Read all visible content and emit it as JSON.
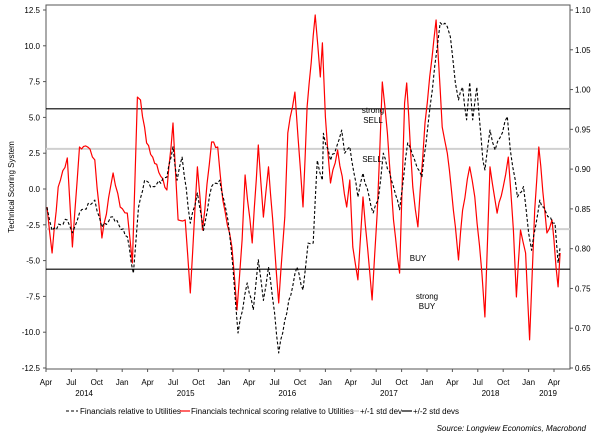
{
  "chart_data": {
    "type": "line",
    "ylabel": "Technical Scoring System",
    "ylim_left": [
      -12.5,
      12.5
    ],
    "ylim_right": [
      0.65,
      1.1
    ],
    "left_ticks": [
      "12.5",
      "10.0",
      "7.5",
      "5.0",
      "2.5",
      "0.0",
      "-2.5",
      "-5.0",
      "-7.5",
      "-10.0",
      "-12.5"
    ],
    "right_ticks": [
      "1.10",
      "1.05",
      "1.00",
      "0.95",
      "0.90",
      "0.85",
      "0.80",
      "0.75",
      "0.70",
      "0.65"
    ],
    "x_ticks": [
      "Apr",
      "Jul",
      "Oct",
      "Jan",
      "Apr",
      "Jul",
      "Oct",
      "Jan",
      "Apr",
      "Jul",
      "Oct",
      "Jan",
      "Apr",
      "Jul",
      "Oct",
      "Jan",
      "Apr",
      "Jul",
      "Oct",
      "Jan",
      "Apr"
    ],
    "x_years": [
      "2014",
      "2015",
      "2016",
      "2017",
      "2018",
      "2019"
    ],
    "xlim": [
      2014.25,
      2019.33
    ],
    "grid": false,
    "legend_position": "bottom",
    "legend": [
      "Financials relative to Utilities",
      "Financials technical scoring relative to Utilities",
      "+/-1 std dev",
      "+/-2 std devs"
    ],
    "source": "Source: Longview Economics, Macrobond",
    "annotations": {
      "strong": "strong",
      "sell": "SELL",
      "sell2": "SELL",
      "buy": "BUY",
      "strong2": "strong",
      "buy2": "BUY"
    },
    "std1": 2.8,
    "std2": 5.6,
    "series": [
      {
        "name": "Financials technical scoring relative to Utilities",
        "axis": "left",
        "color": "#ff0000",
        "x": [
          2014.26,
          2014.31,
          2014.37,
          2014.46,
          2014.51,
          2014.58,
          2014.66,
          2014.73,
          2014.8,
          2014.91,
          2014.98,
          2015.05,
          2015.1,
          2015.15,
          2015.18,
          2015.24,
          2015.3,
          2015.44,
          2015.5,
          2015.55,
          2015.62,
          2015.67,
          2015.74,
          2015.79,
          2015.88,
          2015.94,
          2015.99,
          2016.08,
          2016.13,
          2016.18,
          2016.21,
          2016.28,
          2016.34,
          2016.39,
          2016.44,
          2016.5,
          2016.54,
          2016.6,
          2016.63,
          2016.7,
          2016.73,
          2016.78,
          2016.82,
          2016.9,
          2016.95,
          2016.97,
          2017.0,
          2017.05,
          2017.12,
          2017.21,
          2017.24,
          2017.27,
          2017.32,
          2017.37,
          2017.46,
          2017.51,
          2017.56,
          2017.61,
          2017.67,
          2017.73,
          2017.78,
          2017.8,
          2017.86,
          2017.91,
          2017.98,
          2018.05,
          2018.09,
          2018.15,
          2018.2,
          2018.28,
          2018.31,
          2018.35,
          2018.42,
          2018.47,
          2018.54,
          2018.57,
          2018.62,
          2018.69,
          2018.75,
          2018.8,
          2018.85,
          2018.88,
          2018.92,
          2018.97,
          2019.01,
          2019.06,
          2019.1,
          2019.18,
          2019.23,
          2019.29,
          2019.31
        ],
        "values": [
          -1.26,
          -4.47,
          0.14,
          2.17,
          -4.05,
          2.93,
          2.93,
          2.03,
          -3.42,
          1.12,
          -1.26,
          -1.68,
          -5.17,
          6.42,
          6.22,
          3.21,
          2.23,
          -0.07,
          4.61,
          -2.16,
          -2.16,
          -7.26,
          1.54,
          -2.86,
          3.28,
          2.93,
          -0.77,
          -4.05,
          -8.45,
          -3.56,
          0.98,
          -3.77,
          3.07,
          -1.96,
          1.54,
          -4.05,
          -7.96,
          -1.96,
          3.91,
          6.77,
          3.63,
          -1.26,
          5.73,
          12.15,
          7.82,
          10.2,
          5.03,
          0.42,
          2.72,
          -1.26,
          0.63,
          -4.05,
          -6.35,
          -0.56,
          -7.75,
          -1.68,
          7.47,
          3.91,
          -2.16,
          -5.87,
          6.01,
          7.4,
          0.14,
          -2.65,
          4.61,
          9.22,
          11.8,
          4.33,
          2.51,
          -2.65,
          -4.96,
          -1.47,
          1.54,
          -0.56,
          -5.87,
          -8.94,
          1.54,
          -1.68,
          0.14,
          2.23,
          -2.86,
          -7.54,
          -2.86,
          -4.47,
          -10.54,
          -1.47,
          2.93,
          -3.07,
          -2.16,
          -6.84,
          -4.47
        ]
      },
      {
        "name": "Financials relative to Utilities",
        "axis": "right",
        "color": "#000000",
        "x": [
          2014.26,
          2014.31,
          2014.46,
          2014.51,
          2014.58,
          2014.73,
          2014.8,
          2014.91,
          2015.05,
          2015.11,
          2015.16,
          2015.22,
          2015.3,
          2015.44,
          2015.5,
          2015.54,
          2015.59,
          2015.67,
          2015.74,
          2015.8,
          2015.88,
          2015.96,
          2016.04,
          2016.09,
          2016.14,
          2016.23,
          2016.29,
          2016.34,
          2016.39,
          2016.44,
          2016.5,
          2016.54,
          2016.6,
          2016.72,
          2016.78,
          2016.83,
          2016.88,
          2016.92,
          2016.97,
          2016.98,
          2017.05,
          2017.11,
          2017.16,
          2017.19,
          2017.24,
          2017.32,
          2017.37,
          2017.47,
          2017.52,
          2017.57,
          2017.67,
          2017.73,
          2017.81,
          2017.88,
          2017.95,
          2018.03,
          2018.1,
          2018.13,
          2018.2,
          2018.23,
          2018.28,
          2018.31,
          2018.35,
          2018.39,
          2018.42,
          2018.45,
          2018.49,
          2018.55,
          2018.57,
          2018.62,
          2018.67,
          2018.72,
          2018.79,
          2018.82,
          2018.89,
          2018.95,
          2019.0,
          2019.03,
          2019.11,
          2019.19,
          2019.26,
          2019.29,
          2019.31
        ],
        "values": [
          0.852,
          0.823,
          0.836,
          0.82,
          0.845,
          0.861,
          0.827,
          0.84,
          0.815,
          0.769,
          0.852,
          0.886,
          0.878,
          0.89,
          0.928,
          0.886,
          0.915,
          0.832,
          0.87,
          0.823,
          0.878,
          0.886,
          0.836,
          0.777,
          0.694,
          0.757,
          0.723,
          0.786,
          0.735,
          0.777,
          0.719,
          0.669,
          0.71,
          0.777,
          0.748,
          0.807,
          0.807,
          0.911,
          0.886,
          0.945,
          0.911,
          0.928,
          0.949,
          0.92,
          0.928,
          0.865,
          0.895,
          0.845,
          0.861,
          0.92,
          0.878,
          0.849,
          0.933,
          0.911,
          0.89,
          0.978,
          1.053,
          1.084,
          1.079,
          1.066,
          1.008,
          0.987,
          1.003,
          0.962,
          1.009,
          0.962,
          1.003,
          0.911,
          0.899,
          0.949,
          0.924,
          0.94,
          0.966,
          0.924,
          0.865,
          0.878,
          0.82,
          0.798,
          0.861,
          0.84,
          0.832,
          0.782,
          0.802
        ]
      }
    ]
  }
}
